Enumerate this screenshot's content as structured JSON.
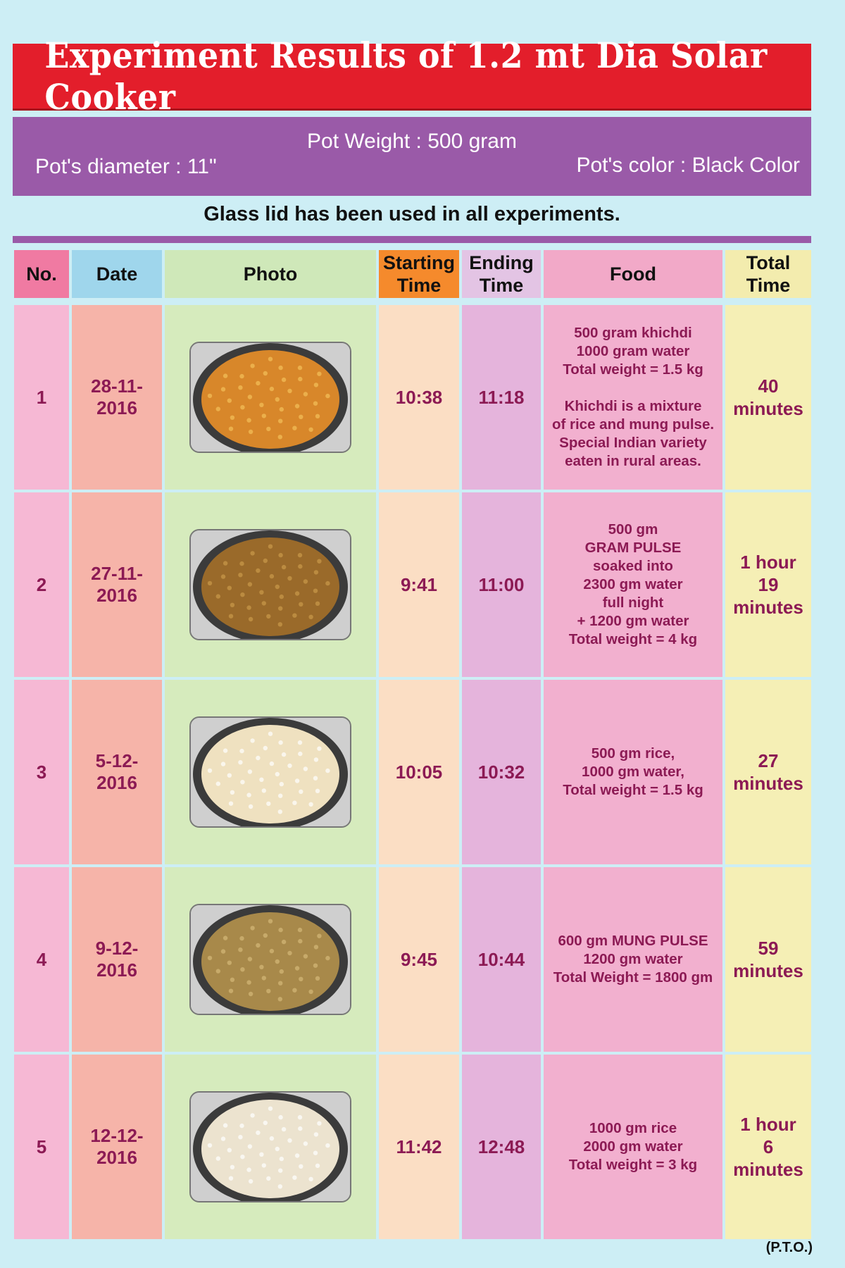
{
  "title": "Experiment Results of 1.2 mt Dia Solar Cooker",
  "pot_info": {
    "weight": "Pot Weight : 500 gram",
    "diameter": "Pot's diameter : 11\"",
    "color": "Pot's color : Black Color"
  },
  "lid_note": "Glass lid has been used in all experiments.",
  "columns": [
    {
      "label": "No.",
      "bg": "#f07aa2"
    },
    {
      "label": "Date",
      "bg": "#9fd6ec"
    },
    {
      "label": "Photo",
      "bg": "#cfe8b9"
    },
    {
      "label": "Starting\nTime",
      "bg": "#f58a2c"
    },
    {
      "label": "Ending\nTime",
      "bg": "#e3c4e4"
    },
    {
      "label": "Food",
      "bg": "#f2a9c8"
    },
    {
      "label": "Total\nTime",
      "bg": "#f3ecae"
    }
  ],
  "column_bg": [
    "#f6b8d4",
    "#f6b4a9",
    "#d6ebbd",
    "#fbdec4",
    "#e5b4dc",
    "#f2b0cf",
    "#f5efb5"
  ],
  "rows": [
    {
      "no": "1",
      "date": "28-11-\n2016",
      "start": "10:38",
      "end": "11:18",
      "food": "500 gram khichdi\n1000 gram water\nTotal weight = 1.5 kg\n\nKhichdi is a mixture\nof rice and mung pulse.\nSpecial Indian variety\neaten in rural areas.",
      "total": "40\nminutes",
      "photo": {
        "name": "khichdi-photo",
        "fill": "#d8872a",
        "speck": "#f3c15a"
      }
    },
    {
      "no": "2",
      "date": "27-11-\n2016",
      "start": "9:41",
      "end": "11:00",
      "food": "500 gm\nGRAM PULSE\nsoaked into\n2300 gm water\nfull night\n+ 1200 gm water\nTotal weight = 4 kg",
      "total": "1 hour\n19\nminutes",
      "photo": {
        "name": "gram-pulse-photo",
        "fill": "#9a6a2a",
        "speck": "#c99a4a"
      }
    },
    {
      "no": "3",
      "date": "5-12-\n2016",
      "start": "10:05",
      "end": "10:32",
      "food": "500 gm rice,\n1000 gm water,\nTotal weight = 1.5 kg",
      "total": "27\nminutes",
      "photo": {
        "name": "rice-photo",
        "fill": "#efe1c0",
        "speck": "#ffffff"
      }
    },
    {
      "no": "4",
      "date": "9-12-\n2016",
      "start": "9:45",
      "end": "10:44",
      "food": "600 gm MUNG PULSE\n1200 gm water\nTotal Weight = 1800 gm",
      "total": "59\nminutes",
      "photo": {
        "name": "mung-pulse-photo",
        "fill": "#a8894a",
        "speck": "#d4b878"
      }
    },
    {
      "no": "5",
      "date": "12-12-\n2016",
      "start": "11:42",
      "end": "12:48",
      "food": "1000 gm rice\n2000 gm water\nTotal weight = 3 kg",
      "total": "1 hour\n6\nminutes",
      "photo": {
        "name": "rice-spoon-photo",
        "fill": "#ece3cf",
        "speck": "#ffffff"
      }
    }
  ],
  "footer": "(P.T.O.)"
}
